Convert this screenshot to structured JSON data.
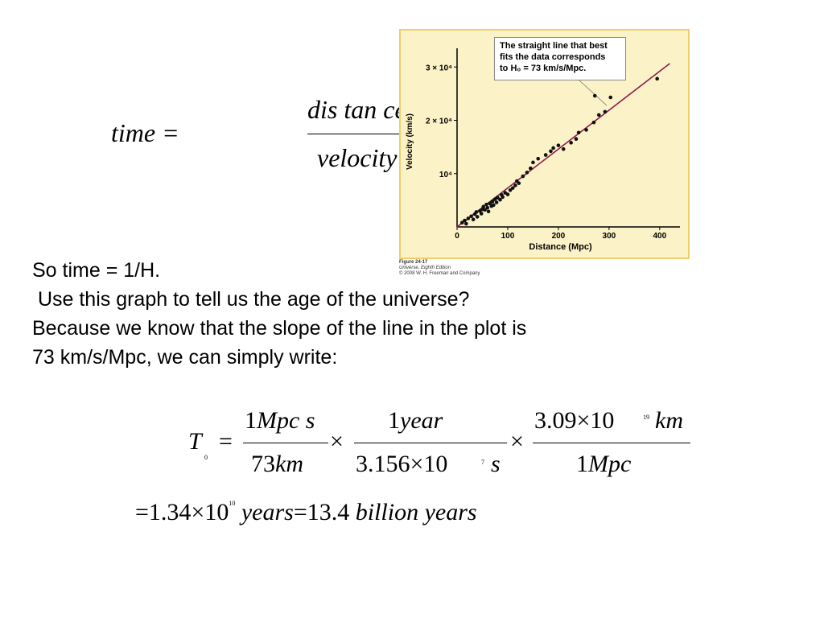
{
  "eq1": {
    "lhs": "time =",
    "numerator": "dis tan ce",
    "denominator": "velocity"
  },
  "paragraph": {
    "line1": "So time = 1/H.",
    "line2": " Use this graph to tell us the age of the universe?",
    "line3": "Because we know that the slope of the line in the plot is",
    "line4": "73 km/s/Mpc, we can simply write:"
  },
  "figure": {
    "callout_line1": "The straight line that best",
    "callout_line2": "fits the data corresponds",
    "callout_line3": "to H₀ = 73 km/s/Mpc.",
    "caption_line1": "Figure 24-17",
    "caption_line2": "Universe, Eighth Edition",
    "caption_line3": "© 2008 W. H. Freeman and Company"
  },
  "chart_data": {
    "type": "scatter",
    "xlabel": "Distance (Mpc)",
    "ylabel": "Velocity (km/s)",
    "xlim": [
      0,
      440
    ],
    "ylim": [
      0,
      32000
    ],
    "x_ticks": [
      0,
      100,
      200,
      300,
      400
    ],
    "x_tick_labels": [
      "0",
      "100",
      "200",
      "300",
      "400"
    ],
    "y_ticks": [
      10000,
      20000,
      30000
    ],
    "y_tick_labels": [
      "10⁴",
      "2 × 10⁴",
      "3 × 10⁴"
    ],
    "fit_line": {
      "slope": 73,
      "x": [
        0,
        420
      ]
    },
    "fit_line_color": "#8b1a4f",
    "point_color": "#111111",
    "points": [
      [
        10,
        800
      ],
      [
        15,
        1200
      ],
      [
        18,
        600
      ],
      [
        22,
        1600
      ],
      [
        28,
        2000
      ],
      [
        32,
        1400
      ],
      [
        35,
        2400
      ],
      [
        38,
        2800
      ],
      [
        40,
        1900
      ],
      [
        45,
        3000
      ],
      [
        48,
        2500
      ],
      [
        50,
        3300
      ],
      [
        52,
        3800
      ],
      [
        55,
        3200
      ],
      [
        58,
        4200
      ],
      [
        60,
        3600
      ],
      [
        62,
        2900
      ],
      [
        65,
        4400
      ],
      [
        68,
        3900
      ],
      [
        70,
        4800
      ],
      [
        72,
        4100
      ],
      [
        75,
        5200
      ],
      [
        78,
        4600
      ],
      [
        80,
        5500
      ],
      [
        85,
        5100
      ],
      [
        88,
        6000
      ],
      [
        90,
        5600
      ],
      [
        95,
        6400
      ],
      [
        100,
        6100
      ],
      [
        105,
        6900
      ],
      [
        110,
        7300
      ],
      [
        115,
        7800
      ],
      [
        118,
        8600
      ],
      [
        122,
        8200
      ],
      [
        130,
        9500
      ],
      [
        138,
        10200
      ],
      [
        145,
        11000
      ],
      [
        150,
        12100
      ],
      [
        160,
        12800
      ],
      [
        175,
        13500
      ],
      [
        185,
        14200
      ],
      [
        190,
        14800
      ],
      [
        200,
        15300
      ],
      [
        210,
        14600
      ],
      [
        225,
        15800
      ],
      [
        235,
        16500
      ],
      [
        240,
        17700
      ],
      [
        255,
        18200
      ],
      [
        270,
        19600
      ],
      [
        280,
        21000
      ],
      [
        292,
        21600
      ],
      [
        303,
        24300
      ],
      [
        272,
        24600
      ],
      [
        395,
        27800
      ]
    ]
  },
  "eq2": {
    "T": "T",
    "T_sub": "0",
    "eq": "=",
    "f1_num_1": "1",
    "f1_num_rest": "Mpc s",
    "f1_den_1": "73",
    "f1_den_rest": "km",
    "times": "×",
    "f2_num_1": "1",
    "f2_num_rest": "year",
    "f2_den": "3.156×10",
    "f2_den_exp": "7",
    "f2_den_unit": "s",
    "f3_num": "3.09×10",
    "f3_num_exp": "19",
    "f3_num_unit": "km",
    "f3_den_1": "1",
    "f3_den_rest": "Mpc"
  },
  "eq3": {
    "eq": "=",
    "value": "1.34×10",
    "exp": "10",
    "years": "years",
    "eq2": "=",
    "value2": "13.4",
    "billion": "billion",
    "years2": "years"
  }
}
